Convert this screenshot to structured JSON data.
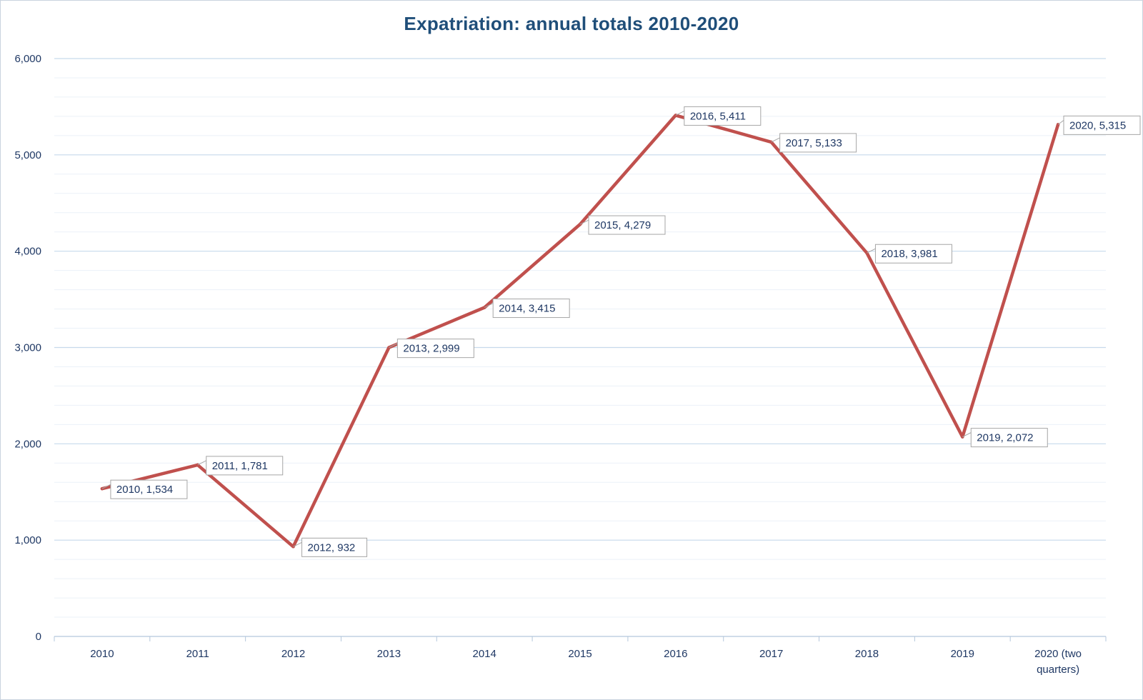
{
  "chart_data": {
    "type": "line",
    "title": "Expatriation:  annual totals 2010-2020",
    "xlabel": "",
    "ylabel": "",
    "categories": [
      "2010",
      "2011",
      "2012",
      "2013",
      "2014",
      "2015",
      "2016",
      "2017",
      "2018",
      "2019",
      "2020 (two quarters)"
    ],
    "category_lines": [
      [
        "2010"
      ],
      [
        "2011"
      ],
      [
        "2012"
      ],
      [
        "2013"
      ],
      [
        "2014"
      ],
      [
        "2015"
      ],
      [
        "2016"
      ],
      [
        "2017"
      ],
      [
        "2018"
      ],
      [
        "2019"
      ],
      [
        "2020 (two",
        "quarters)"
      ]
    ],
    "series": [
      {
        "values": [
          1534,
          1781,
          932,
          2999,
          3415,
          4279,
          5411,
          5133,
          3981,
          2072,
          5315
        ],
        "color": "#c0504d"
      }
    ],
    "data_labels": [
      "2010, 1,534",
      "2011, 1,781",
      "2012, 932",
      "2013, 2,999",
      "2014, 3,415",
      "2015, 4,279",
      "2016, 5,411",
      "2017, 5,133",
      "2018, 3,981",
      "2019, 2,072",
      "2020, 5,315"
    ],
    "ylim": [
      0,
      6000
    ],
    "y_ticks": [
      0,
      1000,
      2000,
      3000,
      4000,
      5000,
      6000
    ],
    "y_tick_labels": [
      "0",
      "1,000",
      "2,000",
      "3,000",
      "4,000",
      "5,000",
      "6,000"
    ],
    "grid": true,
    "minor_grid": true,
    "legend": "none",
    "colors": {
      "title": "#1f4e79",
      "text": "#1f3864",
      "major_grid": "#c6d9ec",
      "minor_grid": "#ebf1f8",
      "axis": "#b4c7dc",
      "label_border": "#a6a6a6"
    }
  }
}
